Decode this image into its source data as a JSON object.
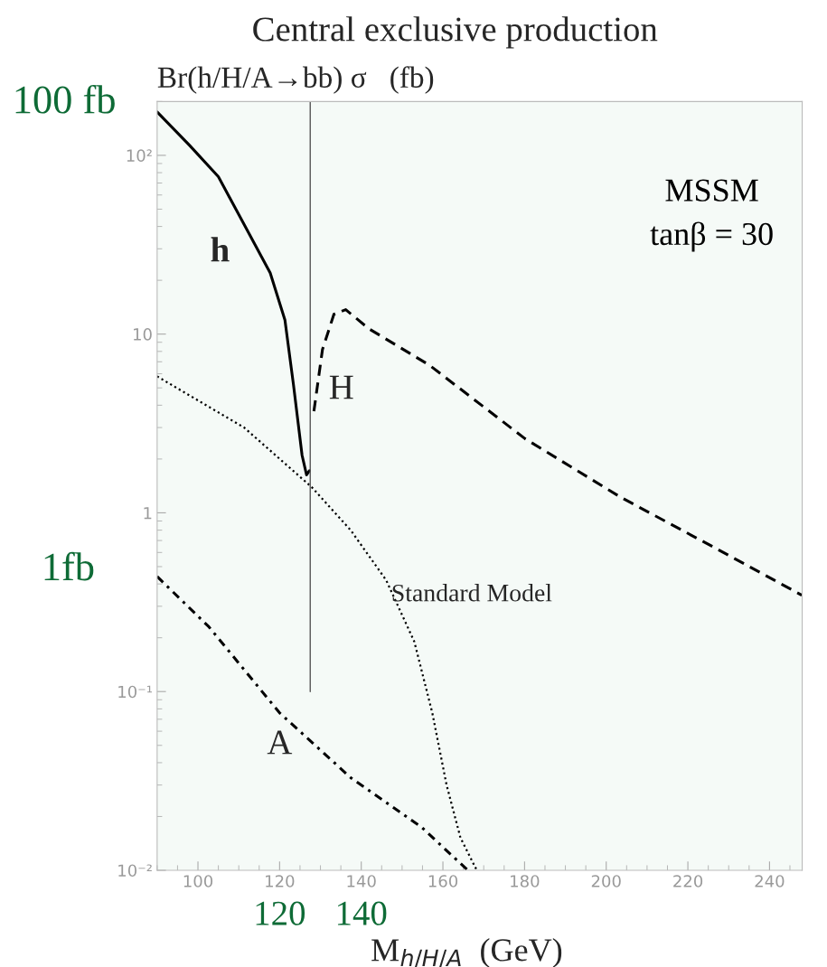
{
  "chart_data": {
    "type": "line",
    "title": "Central exclusive production",
    "ylabel": "Br(h/H/A→bb) σ   (fb)",
    "xlabel": "M$_{h/H/A}$  (GeV)",
    "log": "y",
    "xlim": [
      90,
      248
    ],
    "ylim": [
      0.01,
      200
    ],
    "xticks": [
      100,
      120,
      140,
      160,
      180,
      200,
      220,
      240
    ],
    "yticks": [
      {
        "value": 0.01,
        "label": "10⁻²"
      },
      {
        "value": 0.1,
        "label": "10⁻¹"
      },
      1,
      10,
      {
        "value": 100,
        "label": "10²"
      }
    ],
    "grid": false,
    "legend": false,
    "series": [
      {
        "name": "h",
        "color": "#000000",
        "line_style": "solid",
        "x": [
          90,
          97.9,
          105,
          112.1,
          117.7,
          121.3,
          123.4,
          125.5,
          126.6,
          127.3
        ],
        "values": [
          175,
          114,
          76,
          38,
          22,
          12,
          5.2,
          2.1,
          1.63,
          1.72
        ]
      },
      {
        "name": "H",
        "color": "#000000",
        "line_style": "dashed",
        "x": [
          128.4,
          130.5,
          133.3,
          136.2,
          141.9,
          156.7,
          180.1,
          203.6,
          227,
          247.9
        ],
        "values": [
          3.7,
          8.2,
          12.9,
          13.7,
          10.7,
          6.7,
          2.6,
          1.22,
          0.63,
          0.346
        ]
      },
      {
        "name": "Standard Model",
        "color": "#000000",
        "line_style": "dotted",
        "x": [
          90,
          111.3,
          127.9,
          137.4,
          146.1,
          153.0,
          157.4,
          160.9,
          164.3,
          168.3
        ],
        "values": [
          5.8,
          3.0,
          1.39,
          0.8,
          0.42,
          0.19,
          0.076,
          0.03,
          0.0152,
          0.01
        ]
      },
      {
        "name": "A",
        "color": "#000000",
        "line_style": "dashdot",
        "x": [
          90,
          102.7,
          120,
          137.4,
          154.8,
          166.1
        ],
        "values": [
          0.44,
          0.23,
          0.076,
          0.033,
          0.0174,
          0.01
        ]
      },
      {
        "color": "#555555",
        "line_style": "solid",
        "x": [
          127.5,
          127.5
        ],
        "values": [
          0.1,
          200
        ]
      }
    ],
    "annotations": [
      "MSSM\ntanβ = 30",
      "100 fb",
      "1fb",
      "120",
      "140"
    ]
  }
}
